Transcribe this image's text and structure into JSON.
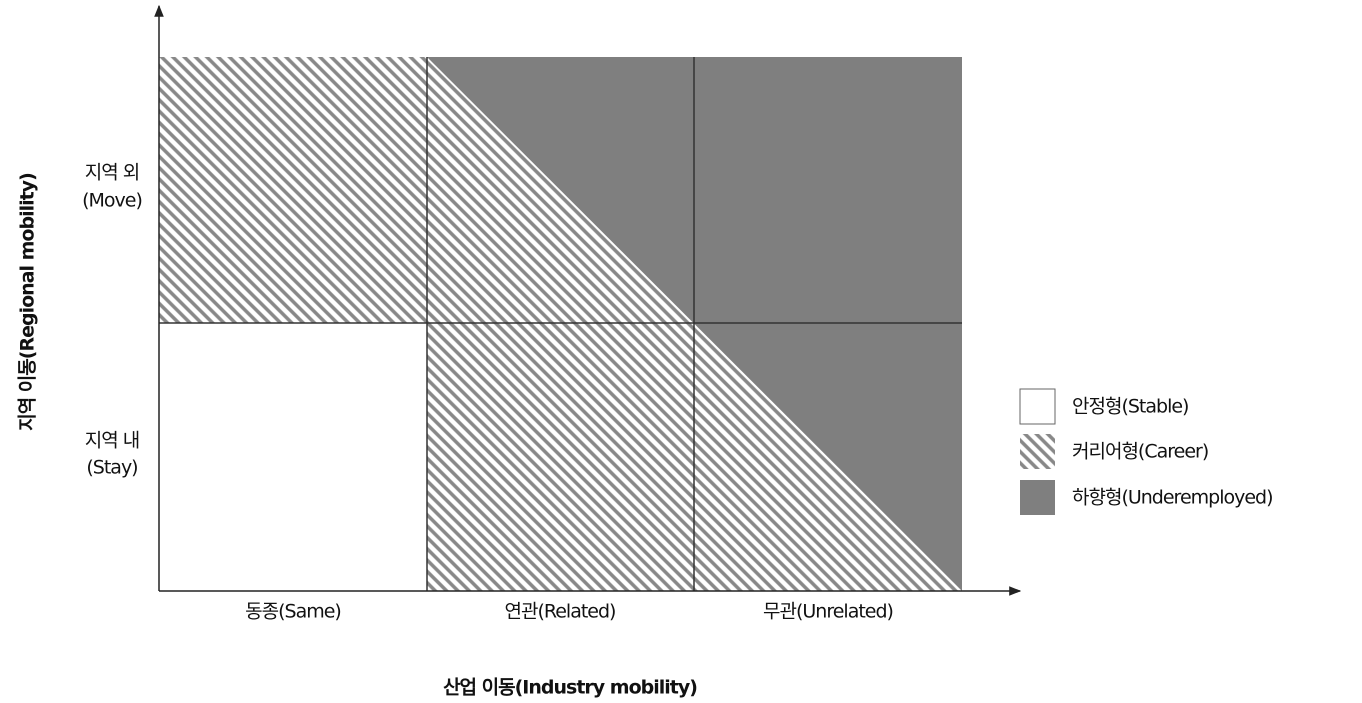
{
  "axes": {
    "y_label": "지역 이동(Regional mobility)",
    "x_label": "산업 이동(Industry mobility)"
  },
  "rows": [
    {
      "label": "지역 외",
      "sublabel": "(Move)"
    },
    {
      "label": "지역 내",
      "sublabel": "(Stay)"
    }
  ],
  "columns": [
    "동종(Same)",
    "연관(Related)",
    "무관(Unrelated)"
  ],
  "legend": [
    "안정형(Stable)",
    "커리어형(Career)",
    "하향형(Underemployed)"
  ]
}
